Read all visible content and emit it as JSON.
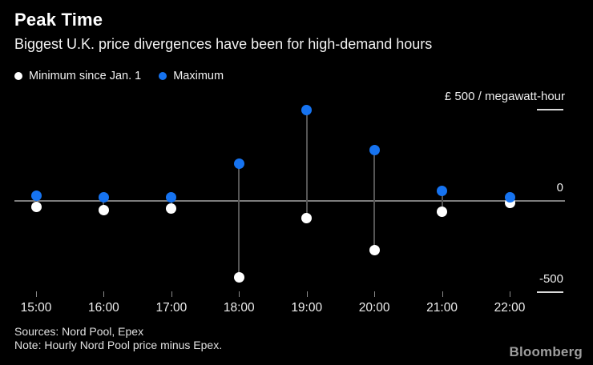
{
  "header": {
    "title": "Peak Time",
    "subtitle": "Biggest U.K. price divergences have been for high-demand hours"
  },
  "legend": {
    "items": [
      {
        "label": "Minimum since Jan. 1",
        "color": "#ffffff"
      },
      {
        "label": "Maximum",
        "color": "#1673f0"
      }
    ]
  },
  "axis": {
    "top_label": "£ 500 / megawatt-hour",
    "zero_label": "0",
    "bottom_label": "-500"
  },
  "chart_data": {
    "type": "scatter",
    "subtype": "dumbbell-range",
    "title": "Peak Time",
    "subtitle": "Biggest U.K. price divergences have been for high-demand hours",
    "categories": [
      "15:00",
      "16:00",
      "17:00",
      "18:00",
      "19:00",
      "20:00",
      "21:00",
      "22:00"
    ],
    "series": [
      {
        "name": "Minimum since Jan. 1",
        "color": "#ffffff",
        "values": [
          -35,
          -50,
          -40,
          -420,
          -95,
          -270,
          -60,
          -10
        ]
      },
      {
        "name": "Maximum",
        "color": "#1673f0",
        "values": [
          30,
          20,
          20,
          205,
          500,
          280,
          55,
          20
        ]
      }
    ],
    "ylabel": "£ / megawatt-hour",
    "xlabel": "",
    "ylim": [
      -500,
      500
    ],
    "yticks": [
      {
        "value": 500,
        "label": "£ 500 / megawatt-hour"
      },
      {
        "value": 0,
        "label": "0"
      },
      {
        "value": -500,
        "label": "-500"
      }
    ],
    "grid": "off",
    "legend_position": "top-left"
  },
  "footer": {
    "sources": "Sources: Nord Pool, Epex",
    "note": "Note: Hourly Nord Pool price minus Epex.",
    "logo": "Bloomberg"
  },
  "colors": {
    "background": "#000000",
    "max_dot": "#1673f0",
    "min_dot": "#ffffff",
    "zero_line": "#7d7d7d",
    "connector": "#555555",
    "text": "#f2f2f2",
    "axis_text": "#ededed",
    "logo": "#9e9e9e"
  }
}
